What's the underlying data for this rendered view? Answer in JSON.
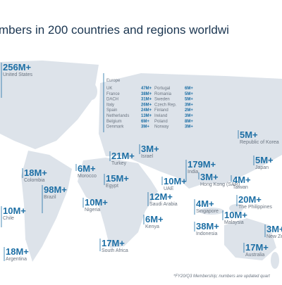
{
  "title": "mbers in 200 countries and regions worldwi",
  "labels": [
    {
      "value": "256M+",
      "name": "United States"
    },
    {
      "value": "179M+",
      "name": "India"
    },
    {
      "value": "5M+",
      "name": "Republic of Korea"
    },
    {
      "value": "3M+",
      "name": "Israel"
    },
    {
      "value": "21M+",
      "name": "Turkey"
    },
    {
      "value": "6M+",
      "name": "Morocco"
    },
    {
      "value": "18M+",
      "name": "Colombia"
    },
    {
      "value": "98M+",
      "name": "Brazil"
    },
    {
      "value": "15M+",
      "name": "Egypt"
    },
    {
      "value": "10M+",
      "name": "UAE"
    },
    {
      "value": "3M+",
      "name": "Hong Kong (SAR)"
    },
    {
      "value": "4M+",
      "name": "Taiwan"
    },
    {
      "value": "5M+",
      "name": "Japan"
    },
    {
      "value": "10M+",
      "name": "Chile"
    },
    {
      "value": "10M+",
      "name": "Nigeria"
    },
    {
      "value": "12M+",
      "name": "Saudi Arabia"
    },
    {
      "value": "4M+",
      "name": "Singapore"
    },
    {
      "value": "20M+",
      "name": "The Philippines"
    },
    {
      "value": "3M+",
      "name": "New Zealand"
    },
    {
      "value": "6M+",
      "name": "Kenya"
    },
    {
      "value": "10M+",
      "name": "Malaysia"
    },
    {
      "value": "38M+",
      "name": "Indonesia"
    },
    {
      "value": "17M+",
      "name": "South Africa"
    },
    {
      "value": "17M+",
      "name": "Australia"
    },
    {
      "value": "18M+",
      "name": "Argentina"
    }
  ],
  "europe": {
    "heading": "Europe",
    "rows": [
      [
        {
          "country": "UK",
          "value": "47M+"
        },
        {
          "country": "Portugal",
          "value": "6M+"
        }
      ],
      [
        {
          "country": "France",
          "value": "38M+"
        },
        {
          "country": "Romania",
          "value": "5M+"
        }
      ],
      [
        {
          "country": "DACH",
          "value": "31M+"
        },
        {
          "country": "Sweden",
          "value": "5M+"
        }
      ],
      [
        {
          "country": "Italy",
          "value": "26M+"
        },
        {
          "country": "Czech Rep.",
          "value": "3M+"
        }
      ],
      [
        {
          "country": "Spain",
          "value": "24M+"
        },
        {
          "country": "Finland",
          "value": "2M+"
        }
      ],
      [
        {
          "country": "Netherlands",
          "value": "13M+"
        },
        {
          "country": "Ireland",
          "value": "3M+"
        }
      ],
      [
        {
          "country": "Belgium",
          "value": "6M+"
        },
        {
          "country": "Poland",
          "value": "8M+"
        }
      ],
      [
        {
          "country": "Denmark",
          "value": "3M+"
        },
        {
          "country": "Norway",
          "value": "3M+"
        }
      ]
    ]
  },
  "footnote": "*FY20/Q3 Membership; numbers are updated quart"
}
